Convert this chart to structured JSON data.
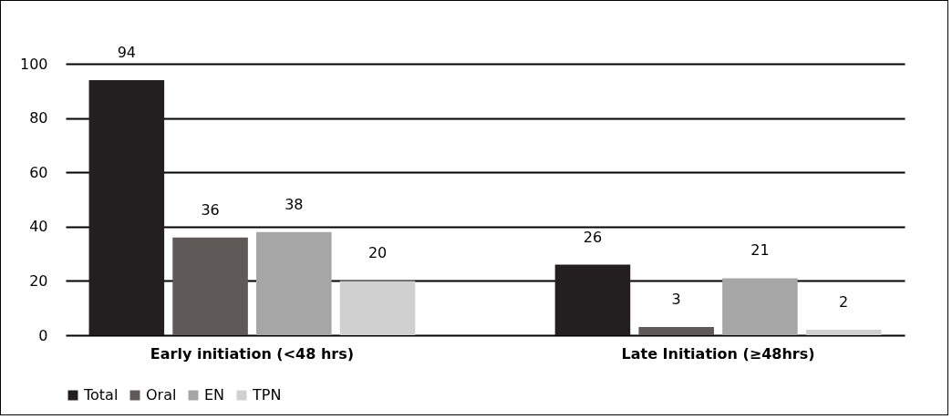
{
  "chart_data": {
    "type": "bar",
    "categories": [
      "Early initiation (<48 hrs)",
      "Late Initiation (≥48hrs)"
    ],
    "series": [
      {
        "name": "Total",
        "color": "#231f20",
        "values": [
          94,
          26
        ]
      },
      {
        "name": "Oral",
        "color": "#5f5a58",
        "values": [
          36,
          3
        ]
      },
      {
        "name": "EN",
        "color": "#a6a6a6",
        "values": [
          38,
          21
        ]
      },
      {
        "name": "TPN",
        "color": "#d0d0d0",
        "values": [
          20,
          2
        ]
      }
    ],
    "ylim": [
      0,
      100
    ],
    "yticks": [
      0,
      20,
      40,
      60,
      80,
      100
    ],
    "grid": "y",
    "legend": "bottom",
    "data_labels": true
  }
}
